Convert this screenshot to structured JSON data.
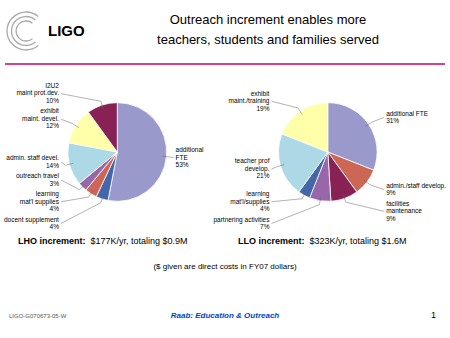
{
  "title": "Outreach increment enables more",
  "subtitle": "teachers, students and families served",
  "annotations": [
    "LIGO",
    "($ given are direct costs in FY07 dollars)",
    "LIGO-G070673-05-W",
    "Raab: Education & Outreach",
    "1"
  ],
  "chart_data": [
    {
      "type": "pie",
      "categories": [
        "additional\nFTE",
        "docent supplement",
        "learning\nmat'l supplies",
        "outreach travel",
        "admin. staff devel.",
        "exhibit\nmaint. devel.",
        "I2U2\nmaint prot.dev."
      ],
      "values": [
        53,
        4,
        4,
        3,
        14,
        12,
        10
      ],
      "value_labels": [
        "53%",
        "4%",
        "4%",
        "3%",
        "14%",
        "12%",
        "10%"
      ],
      "colors": [
        "#9999cc",
        "#4466aa",
        "#cc6655",
        "#9966aa",
        "#add8e6",
        "#ffffaa",
        "#882255"
      ],
      "data_labels": true,
      "annotations": [
        "LHO increment:",
        "  $177K/yr, totaling $0.9M"
      ]
    },
    {
      "type": "pie",
      "categories": [
        "additional FTE",
        "admin./staff develop.",
        "facilities\nmantenance",
        "partnering activities",
        "learning\nmat'l/supplies",
        "teacher prof\ndevelop.",
        "exhibit\nmaint./training"
      ],
      "values": [
        31,
        9,
        9,
        7,
        4,
        21,
        19
      ],
      "value_labels": [
        "31%",
        "9%",
        "9%",
        "7%",
        "4%",
        "21%",
        "19%"
      ],
      "colors": [
        "#9999cc",
        "#cc6655",
        "#882255",
        "#9966aa",
        "#4466aa",
        "#add8e6",
        "#ffffaa"
      ],
      "data_labels": true,
      "annotations": [
        "LLO increment:",
        "  $323K/yr, totaling $1.6M"
      ]
    }
  ]
}
